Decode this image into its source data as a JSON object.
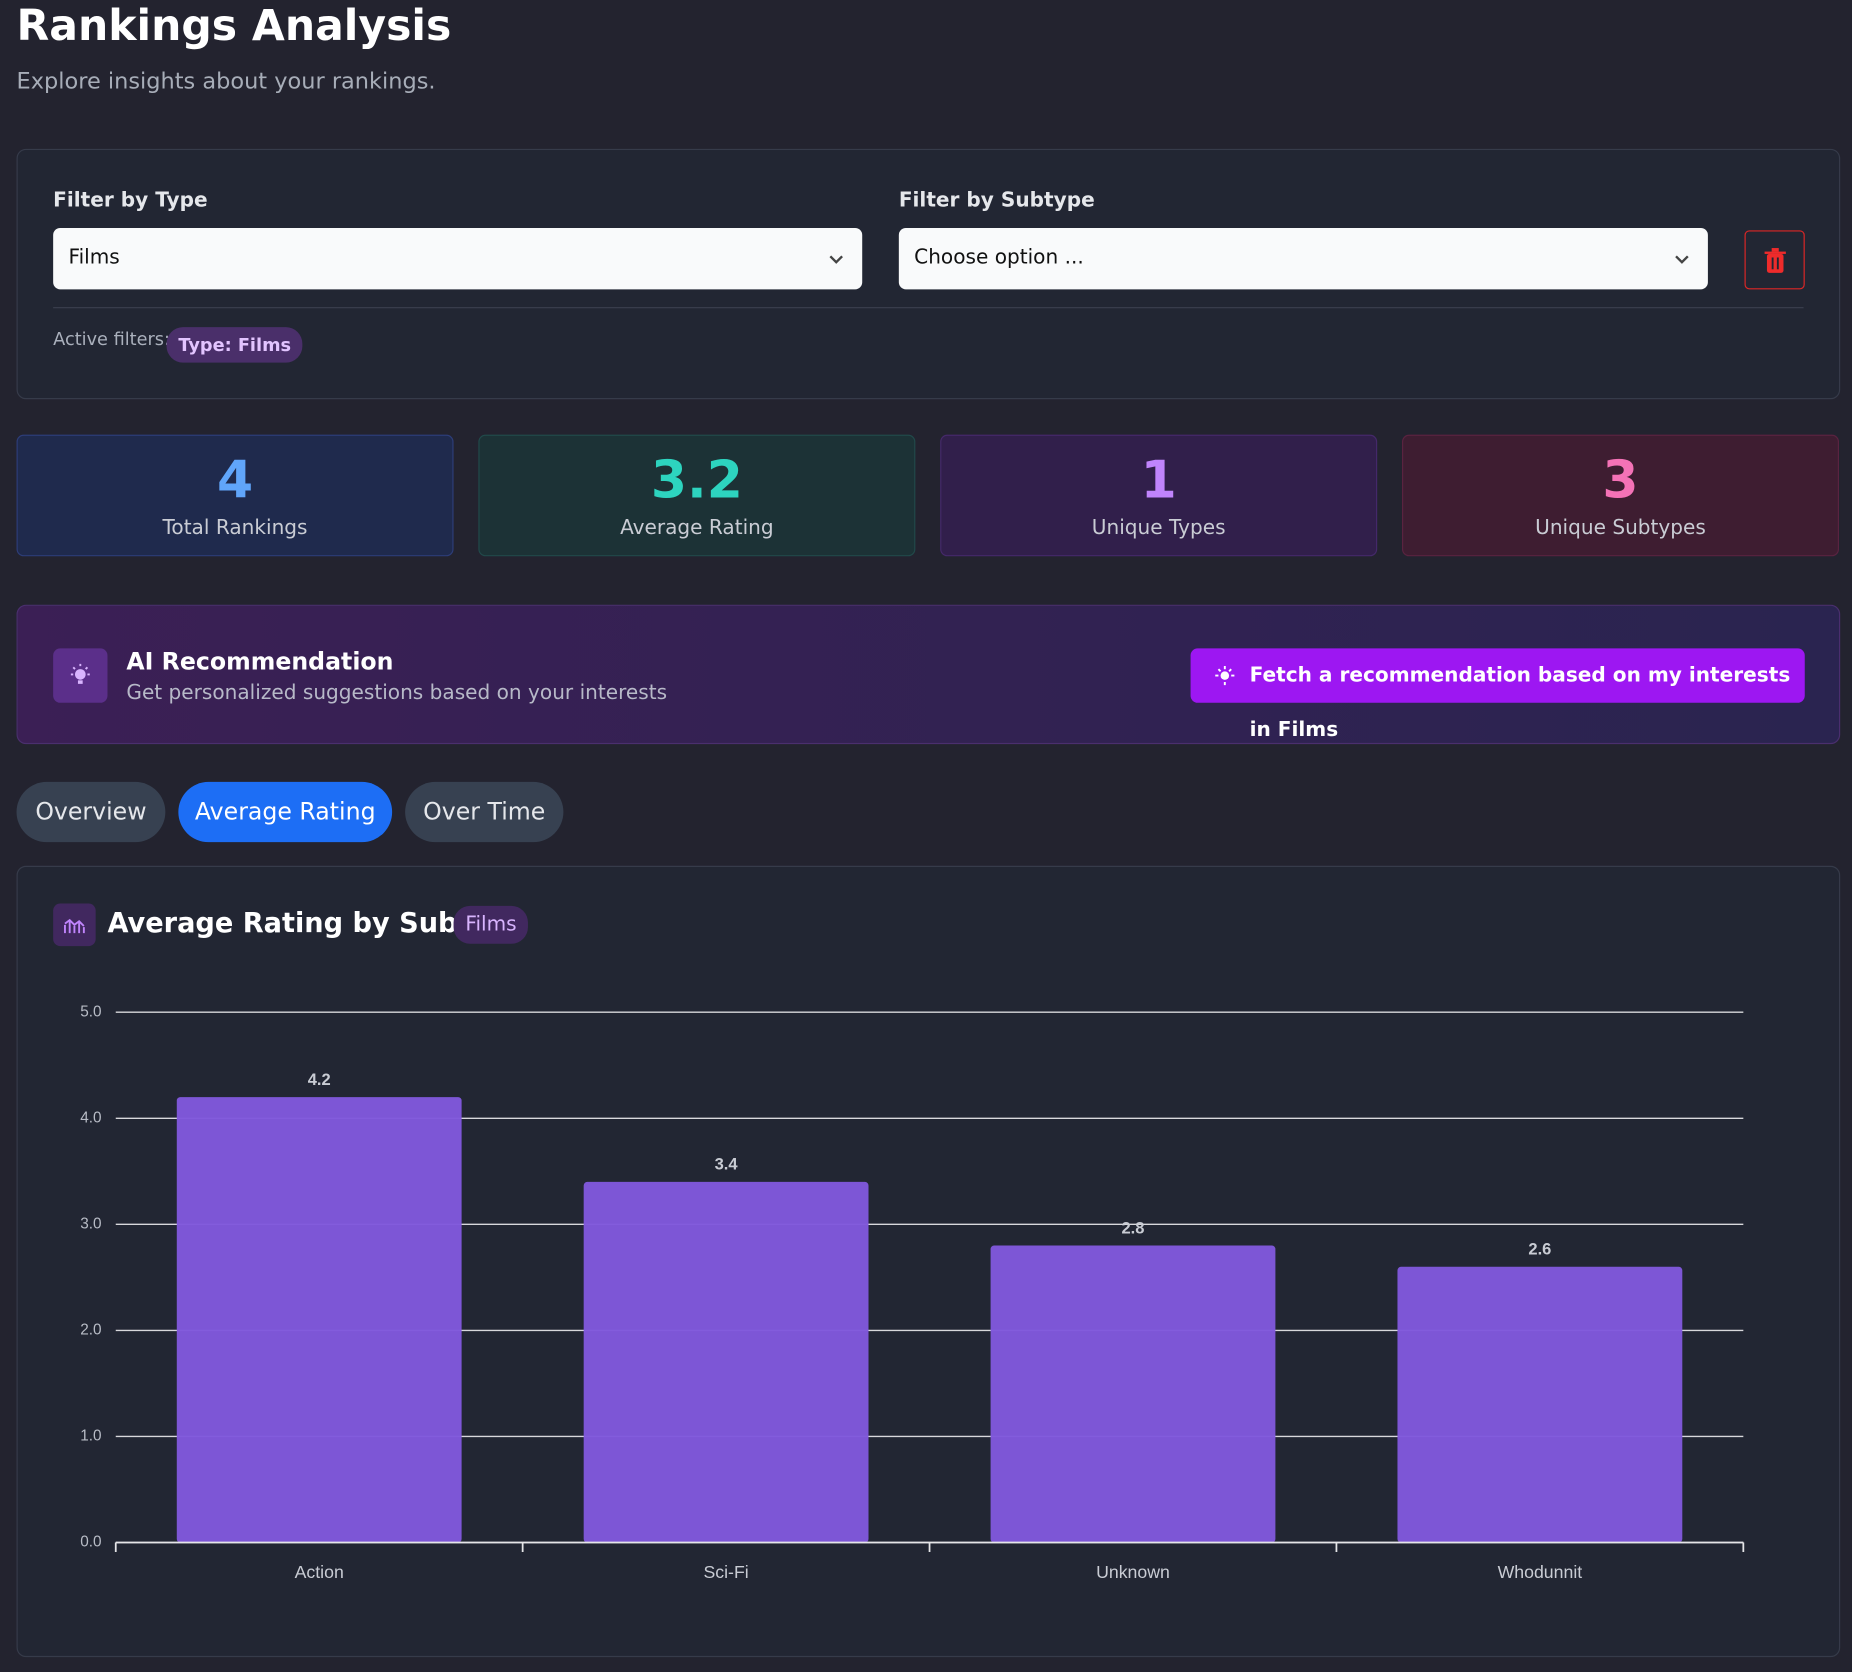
{
  "header": {
    "title": "Rankings Analysis",
    "subtitle": "Explore insights about your rankings."
  },
  "filters": {
    "type_label": "Filter by Type",
    "type_value": "Films",
    "subtype_label": "Filter by Subtype",
    "subtype_placeholder": "Choose option ...",
    "active_label": "Active filters:",
    "active_badge": "Type: Films"
  },
  "stats": [
    {
      "value": 4,
      "label": "Total Rankings"
    },
    {
      "value": 3.2,
      "label": "Average Rating"
    },
    {
      "value": 1,
      "label": "Unique Types"
    },
    {
      "value": 3,
      "label": "Unique Subtypes"
    }
  ],
  "ai": {
    "title": "AI Recommendation",
    "subtitle": "Get personalized suggestions based on your interests",
    "button": "Fetch a recommendation based on my interests in Films"
  },
  "tabs": [
    "Overview",
    "Average Rating",
    "Over Time"
  ],
  "chart_data": {
    "type": "bar",
    "title": "Average Rating by Subtype",
    "badge": "Films",
    "categories": [
      "Action",
      "Sci-Fi",
      "Unknown",
      "Whodunnit"
    ],
    "values": [
      4.2,
      3.4,
      2.8,
      2.6
    ],
    "color": "#8058dc",
    "ylim": [
      0,
      5
    ],
    "yticks": [
      {
        "value": 0,
        "label": "0.0"
      },
      {
        "value": 1,
        "label": "1.0"
      },
      {
        "value": 2,
        "label": "2.0"
      },
      {
        "value": 3,
        "label": "3.0"
      },
      {
        "value": 4,
        "label": "4.0"
      },
      {
        "value": 5,
        "label": "5.0"
      }
    ],
    "grid": true
  }
}
